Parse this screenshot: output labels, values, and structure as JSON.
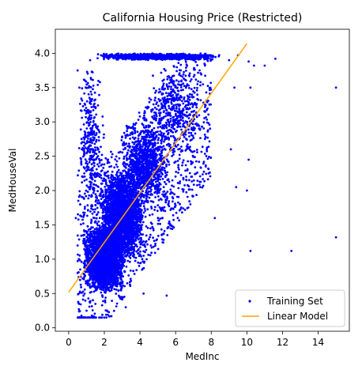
{
  "chart_data": {
    "type": "scatter",
    "title": "California Housing Price (Restricted)",
    "xlabel": "MedInc",
    "ylabel": "MedHouseVal",
    "xlim": [
      -0.75,
      15.75
    ],
    "ylim": [
      -0.05,
      4.35
    ],
    "xticks": [
      0,
      2,
      4,
      6,
      8,
      10,
      12,
      14
    ],
    "yticks": [
      0.0,
      0.5,
      1.0,
      1.5,
      2.0,
      2.5,
      3.0,
      3.5,
      4.0
    ],
    "ytick_labels": [
      "0.0",
      "0.5",
      "1.0",
      "1.5",
      "2.0",
      "2.5",
      "3.0",
      "3.5",
      "4.0"
    ],
    "grid": false,
    "legend_position": "lower right",
    "series": [
      {
        "name": "Training Set",
        "kind": "scatter",
        "color": "#0000ff",
        "marker": "dot",
        "sample_points": [
          [
            0.5,
            3.75
          ],
          [
            0.6,
            3.5
          ],
          [
            1.2,
            3.9
          ],
          [
            2.0,
            3.95
          ],
          [
            3.0,
            3.97
          ],
          [
            4.0,
            3.97
          ],
          [
            5.0,
            3.97
          ],
          [
            6.0,
            3.97
          ],
          [
            7.0,
            3.97
          ],
          [
            8.0,
            3.95
          ],
          [
            9.0,
            3.9
          ],
          [
            9.5,
            3.97
          ],
          [
            10.1,
            3.88
          ],
          [
            10.2,
            3.5
          ],
          [
            10.4,
            3.82
          ],
          [
            11.0,
            3.82
          ],
          [
            11.6,
            3.92
          ],
          [
            15.0,
            3.5
          ],
          [
            9.3,
            3.5
          ],
          [
            10.1,
            2.45
          ],
          [
            9.1,
            2.6
          ],
          [
            10.0,
            2.0
          ],
          [
            9.4,
            2.05
          ],
          [
            10.2,
            1.12
          ],
          [
            8.2,
            1.6
          ],
          [
            12.5,
            1.12
          ],
          [
            15.0,
            1.32
          ],
          [
            1.0,
            0.25
          ],
          [
            1.8,
            0.15
          ],
          [
            2.4,
            0.17
          ],
          [
            3.2,
            0.3
          ],
          [
            4.2,
            0.5
          ],
          [
            5.5,
            0.47
          ],
          [
            0.5,
            0.8
          ],
          [
            0.4,
            1.6
          ],
          [
            0.7,
            2.4
          ]
        ],
        "density_regions": [
          {
            "x_range": [
              0.8,
              3.2
            ],
            "y_range": [
              0.5,
              1.5
            ],
            "density": "very high"
          },
          {
            "x_range": [
              1.8,
              4.2
            ],
            "y_range": [
              1.0,
              2.3
            ],
            "density": "very high"
          },
          {
            "x_range": [
              3.0,
              5.6
            ],
            "y_range": [
              1.8,
              3.0
            ],
            "density": "high"
          },
          {
            "x_range": [
              4.5,
              7.5
            ],
            "y_range": [
              2.5,
              3.8
            ],
            "density": "medium"
          },
          {
            "x_range": [
              0.5,
              2.0
            ],
            "y_range": [
              1.5,
              3.9
            ],
            "density": "medium"
          },
          {
            "x_range": [
              1.5,
              8.5
            ],
            "y_range": [
              3.9,
              4.0
            ],
            "density": "high"
          }
        ]
      },
      {
        "name": "Linear Model",
        "kind": "line",
        "color": "#ffa500",
        "x": [
          0,
          10
        ],
        "y": [
          0.52,
          4.14
        ]
      }
    ]
  }
}
